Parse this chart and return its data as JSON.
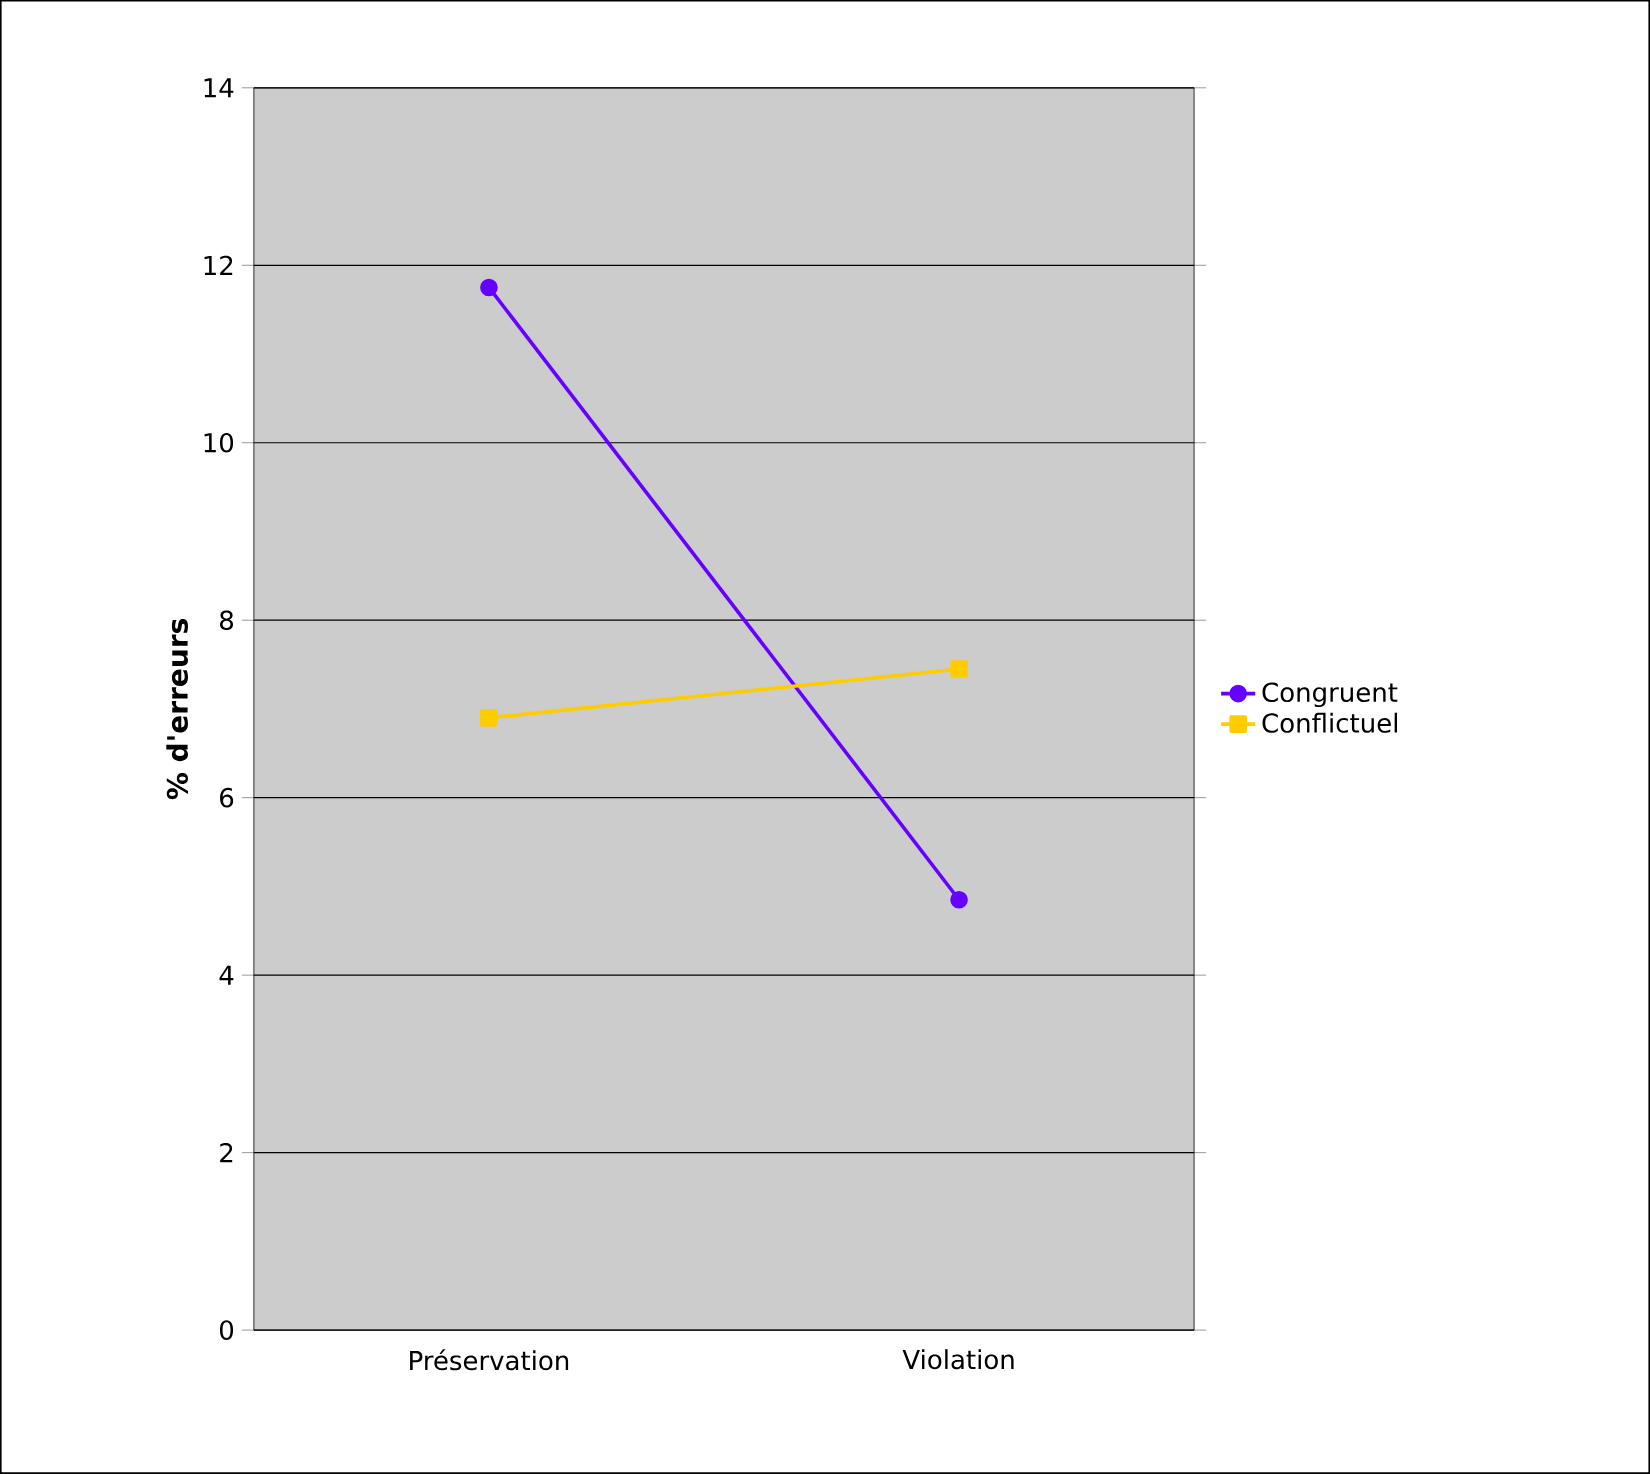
{
  "chart_data": {
    "type": "line",
    "ylabel": "% d'erreurs",
    "categories": [
      "Préservation",
      "Violation"
    ],
    "series": [
      {
        "name": "Congruent",
        "color": "#6600ff",
        "values": [
          11.75,
          4.85
        ],
        "marker": "circle"
      },
      {
        "name": "Conflictuel",
        "color": "#ffcc00",
        "values": [
          6.9,
          7.45
        ],
        "marker": "square"
      }
    ],
    "ylim": [
      0,
      14
    ],
    "yticks": [
      0,
      2,
      4,
      6,
      8,
      10,
      12,
      14
    ],
    "grid": "y",
    "legend": "right"
  }
}
